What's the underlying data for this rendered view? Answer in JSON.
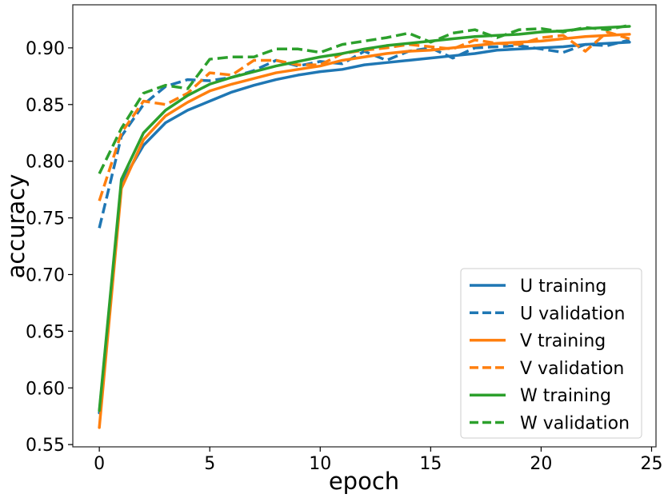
{
  "chart_data": {
    "type": "line",
    "title": "",
    "xlabel": "epoch",
    "ylabel": "accuracy",
    "xlim": [
      -1.2,
      25.2
    ],
    "ylim": [
      0.548,
      0.938
    ],
    "xticks": [
      0,
      5,
      10,
      15,
      20,
      25
    ],
    "yticks": [
      0.55,
      0.6,
      0.65,
      0.7,
      0.75,
      0.8,
      0.85,
      0.9
    ],
    "xtick_labels": [
      "0",
      "5",
      "10",
      "15",
      "20",
      "25"
    ],
    "ytick_labels": [
      "0.55",
      "0.60",
      "0.65",
      "0.70",
      "0.75",
      "0.80",
      "0.85",
      "0.90"
    ],
    "grid": false,
    "legend_position": "lower-right",
    "x": [
      0,
      1,
      2,
      3,
      4,
      5,
      6,
      7,
      8,
      9,
      10,
      11,
      12,
      13,
      14,
      15,
      16,
      17,
      18,
      19,
      20,
      21,
      22,
      23,
      24
    ],
    "series": [
      {
        "name": "U training",
        "color": "#1f77b4",
        "style": "solid",
        "values": [
          0.578,
          0.781,
          0.814,
          0.834,
          0.845,
          0.853,
          0.861,
          0.867,
          0.872,
          0.876,
          0.879,
          0.881,
          0.885,
          0.887,
          0.889,
          0.891,
          0.893,
          0.895,
          0.898,
          0.899,
          0.9,
          0.901,
          0.903,
          0.904,
          0.905
        ]
      },
      {
        "name": "U validation",
        "color": "#1f77b4",
        "style": "dashed",
        "values": [
          0.741,
          0.822,
          0.85,
          0.866,
          0.872,
          0.871,
          0.874,
          0.88,
          0.889,
          0.884,
          0.888,
          0.886,
          0.897,
          0.889,
          0.897,
          0.9,
          0.891,
          0.9,
          0.901,
          0.902,
          0.899,
          0.896,
          0.903,
          0.902,
          0.907
        ]
      },
      {
        "name": "V training",
        "color": "#ff7f0e",
        "style": "solid",
        "values": [
          0.565,
          0.776,
          0.819,
          0.84,
          0.852,
          0.862,
          0.868,
          0.873,
          0.878,
          0.881,
          0.884,
          0.889,
          0.892,
          0.895,
          0.897,
          0.898,
          0.9,
          0.902,
          0.904,
          0.905,
          0.906,
          0.908,
          0.91,
          0.911,
          0.912
        ]
      },
      {
        "name": "V validation",
        "color": "#ff7f0e",
        "style": "dashed",
        "values": [
          0.765,
          0.825,
          0.853,
          0.85,
          0.86,
          0.878,
          0.876,
          0.889,
          0.889,
          0.885,
          0.885,
          0.895,
          0.898,
          0.9,
          0.903,
          0.901,
          0.899,
          0.907,
          0.904,
          0.903,
          0.909,
          0.911,
          0.897,
          0.914,
          0.908
        ]
      },
      {
        "name": "W training",
        "color": "#2ca02c",
        "style": "solid",
        "values": [
          0.58,
          0.784,
          0.825,
          0.845,
          0.858,
          0.868,
          0.874,
          0.879,
          0.884,
          0.888,
          0.892,
          0.895,
          0.899,
          0.902,
          0.904,
          0.906,
          0.908,
          0.91,
          0.911,
          0.912,
          0.914,
          0.915,
          0.917,
          0.918,
          0.919
        ]
      },
      {
        "name": "W validation",
        "color": "#2ca02c",
        "style": "dashed",
        "values": [
          0.789,
          0.829,
          0.86,
          0.867,
          0.864,
          0.89,
          0.892,
          0.892,
          0.899,
          0.899,
          0.896,
          0.903,
          0.906,
          0.909,
          0.913,
          0.905,
          0.913,
          0.916,
          0.909,
          0.916,
          0.917,
          0.914,
          0.918,
          0.916,
          0.92
        ]
      }
    ]
  }
}
